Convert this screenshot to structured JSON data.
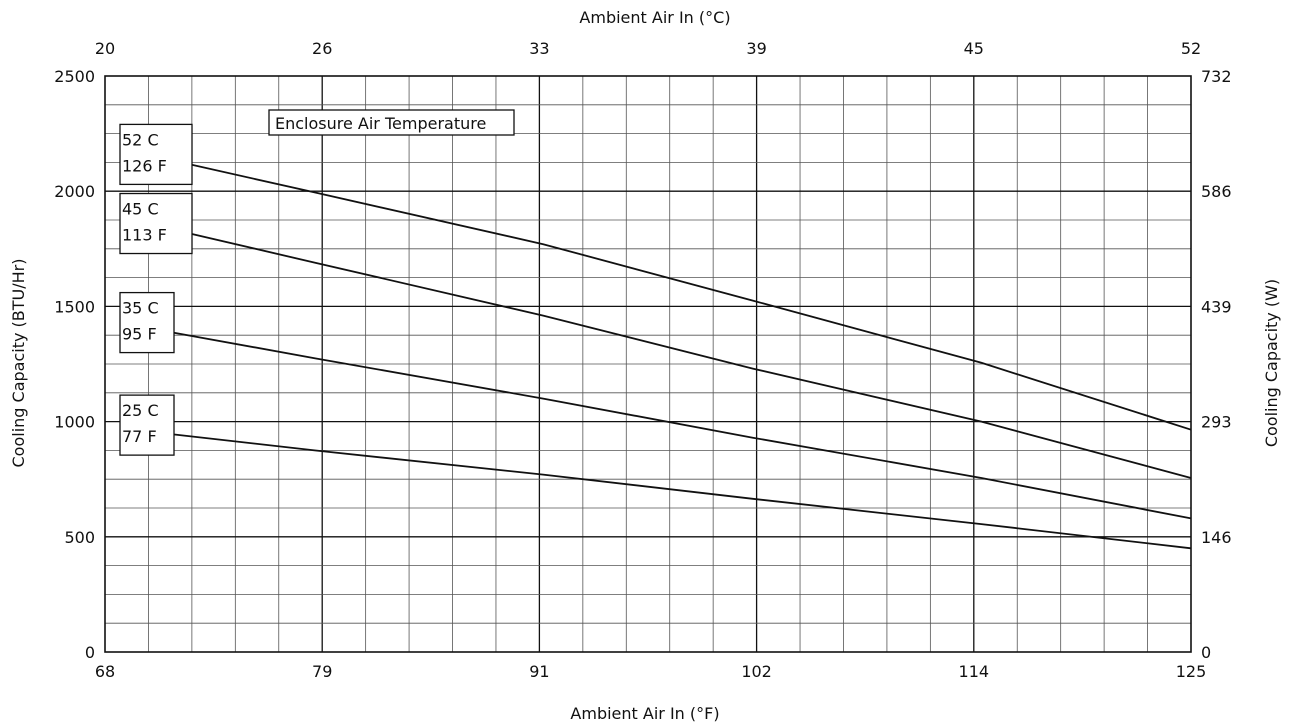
{
  "chart_data": {
    "type": "line",
    "title": "",
    "xlabel_bottom": "Ambient Air In (°F)",
    "xlabel_top": "Ambient Air In (°C)",
    "ylabel_left": "Cooling Capacity (BTU/Hr)",
    "ylabel_right": "Cooling Capacity (W)",
    "xlim": [
      68,
      125
    ],
    "ylim": [
      0,
      2500
    ],
    "grid": true,
    "x_ticks_bottom": [
      "68",
      "79",
      "91",
      "102",
      "114",
      "125"
    ],
    "x_ticks_top": [
      "20",
      "26",
      "33",
      "39",
      "45",
      "52"
    ],
    "y_ticks_left": [
      "0",
      "500",
      "1000",
      "1500",
      "2000",
      "2500"
    ],
    "y_ticks_right": [
      "0",
      "146",
      "293",
      "439",
      "586",
      "732"
    ],
    "annotation": "Enclosure Air Temperature",
    "series": [
      {
        "name": "52 C 126 F",
        "label_line1": "52 C",
        "label_line2": "126 F",
        "x": [
          72,
          79,
          91,
          102,
          114,
          125
        ],
        "values": [
          2125,
          1995,
          1770,
          1525,
          1255,
          965
        ]
      },
      {
        "name": "45 C 113 F",
        "label_line1": "45 C",
        "label_line2": "113 F",
        "x": [
          72,
          79,
          91,
          102,
          114,
          125
        ],
        "values": [
          1825,
          1690,
          1460,
          1230,
          1000,
          755
        ]
      },
      {
        "name": "35 C 95 F",
        "label_line1": "35 C",
        "label_line2": "95 F",
        "x": [
          71,
          79,
          91,
          102,
          114,
          125
        ],
        "values": [
          1395,
          1275,
          1100,
          930,
          755,
          580
        ]
      },
      {
        "name": "25 C 77 F",
        "label_line1": "25 C",
        "label_line2": "77 F",
        "x": [
          71,
          79,
          91,
          102,
          114,
          125
        ],
        "values": [
          950,
          875,
          770,
          665,
          555,
          450
        ]
      }
    ]
  }
}
